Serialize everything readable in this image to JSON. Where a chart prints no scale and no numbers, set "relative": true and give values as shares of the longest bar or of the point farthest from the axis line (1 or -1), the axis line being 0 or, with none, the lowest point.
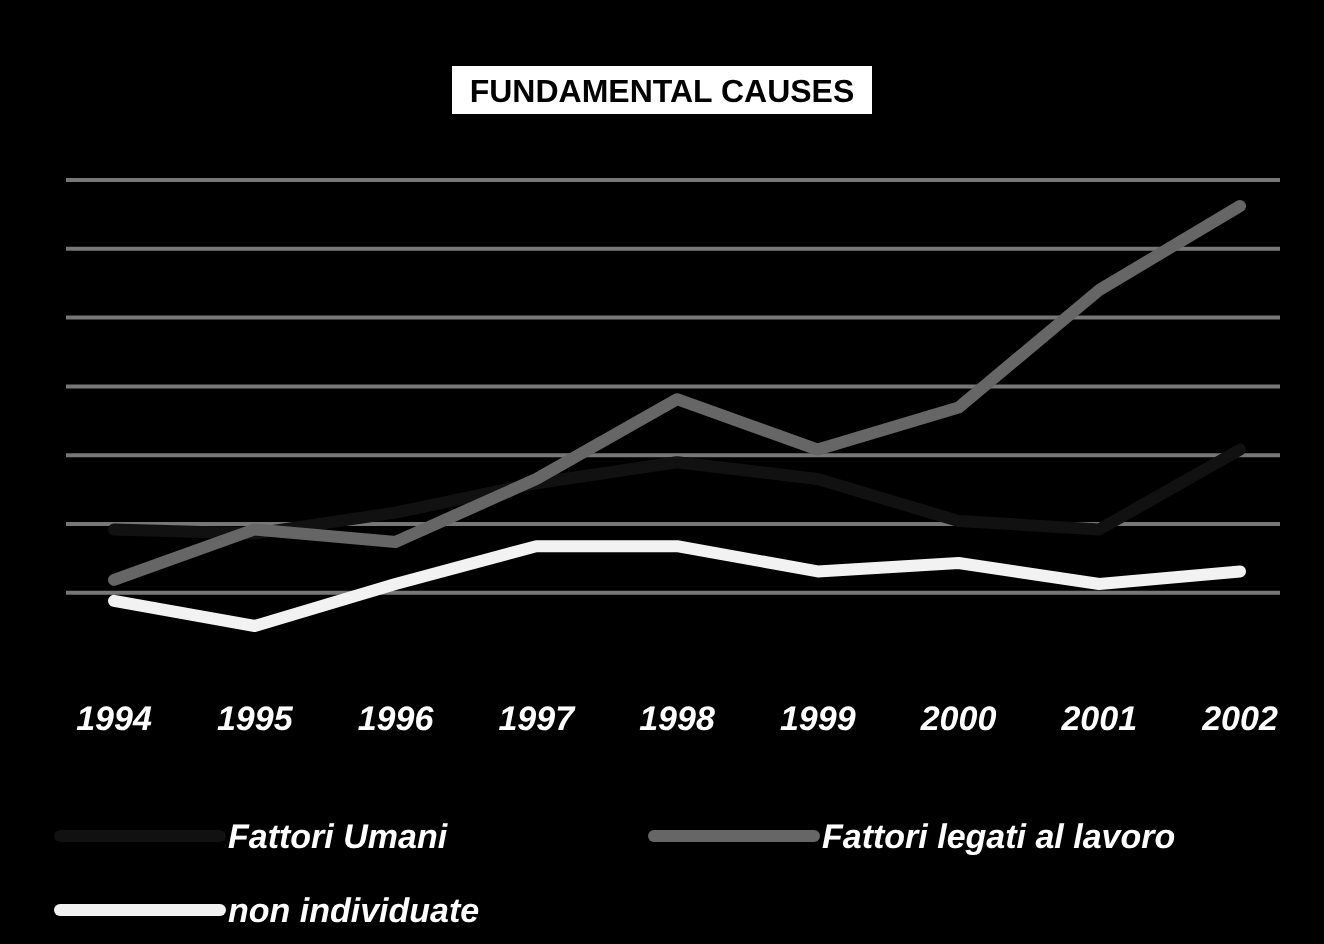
{
  "chart_data": {
    "type": "line",
    "title": "FUNDAMENTAL CAUSES",
    "relative": true,
    "grid": true,
    "legend": "bottom",
    "line_style": "solid",
    "categories": [
      "1994",
      "1995",
      "1996",
      "1997",
      "1998",
      "1999",
      "2000",
      "2001",
      "2002"
    ],
    "series": [
      {
        "name": "Fattori Umani",
        "color": "#111111",
        "values": [
          0.23,
          0.22,
          0.27,
          0.34,
          0.39,
          0.35,
          0.25,
          0.23,
          0.42
        ]
      },
      {
        "name": "Fattori legati al lavoro",
        "color": "#666666",
        "values": [
          0.11,
          0.23,
          0.2,
          0.35,
          0.54,
          0.42,
          0.52,
          0.8,
          1
        ]
      },
      {
        "name": "non individuate",
        "color": "#f2f2f2",
        "values": [
          0.06,
          0,
          0.1,
          0.19,
          0.19,
          0.13,
          0.15,
          0.1,
          0.13
        ]
      }
    ]
  }
}
